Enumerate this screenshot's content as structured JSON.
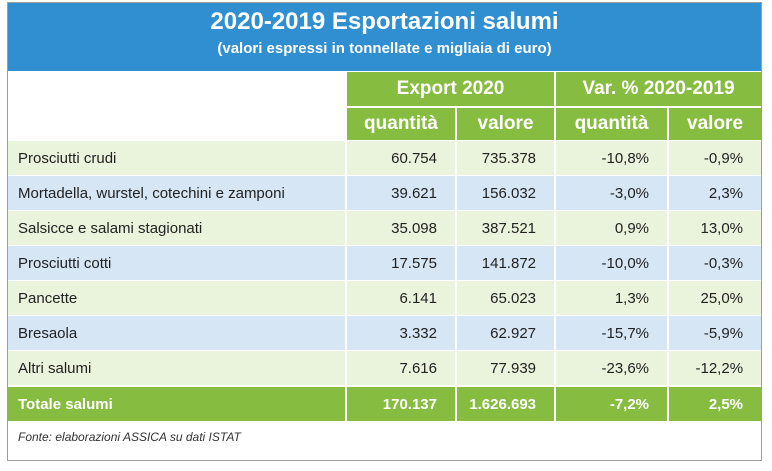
{
  "title": "2020-2019 Esportazioni salumi",
  "subtitle": "(valori espressi in tonnellate e migliaia di euro)",
  "group_headers": [
    "Export 2020",
    "Var. % 2020-2019"
  ],
  "sub_headers": [
    "quantità",
    "valore",
    "quantità",
    "valore"
  ],
  "rows": [
    {
      "label": "Prosciutti crudi",
      "q2020": "60.754",
      "v2020": "735.378",
      "qvar": "-10,8%",
      "vvar": "-0,9%"
    },
    {
      "label": "Mortadella, wurstel, cotechini e zamponi",
      "q2020": "39.621",
      "v2020": "156.032",
      "qvar": "-3,0%",
      "vvar": "2,3%"
    },
    {
      "label": "Salsicce e salami stagionati",
      "q2020": "35.098",
      "v2020": "387.521",
      "qvar": "0,9%",
      "vvar": "13,0%"
    },
    {
      "label": "Prosciutti cotti",
      "q2020": "17.575",
      "v2020": "141.872",
      "qvar": "-10,0%",
      "vvar": "-0,3%"
    },
    {
      "label": "Pancette",
      "q2020": "6.141",
      "v2020": "65.023",
      "qvar": "1,3%",
      "vvar": "25,0%"
    },
    {
      "label": "Bresaola",
      "q2020": "3.332",
      "v2020": "62.927",
      "qvar": "-15,7%",
      "vvar": "-5,9%"
    },
    {
      "label": "Altri salumi",
      "q2020": "7.616",
      "v2020": "77.939",
      "qvar": "-23,6%",
      "vvar": "-12,2%"
    }
  ],
  "total": {
    "label": "Totale salumi",
    "q2020": "170.137",
    "v2020": "1.626.693",
    "qvar": "-7,2%",
    "vvar": "2,5%"
  },
  "source": "Fonte: elaborazioni ASSICA su dati ISTAT",
  "colors": {
    "header_blue": "#2f8fd0",
    "header_green": "#86bc3f",
    "row_green": "#eaf3dc",
    "row_blue": "#d6e6f5"
  },
  "chart_data": {
    "type": "table",
    "title": "2020-2019 Esportazioni salumi",
    "subtitle": "(valori espressi in tonnellate e migliaia di euro)",
    "columns": [
      "",
      "Export 2020 quantità",
      "Export 2020 valore",
      "Var. % 2020-2019 quantità",
      "Var. % 2020-2019 valore"
    ],
    "rows": [
      [
        "Prosciutti crudi",
        60754,
        735378,
        -10.8,
        -0.9
      ],
      [
        "Mortadella, wurstel, cotechini e zamponi",
        39621,
        156032,
        -3.0,
        2.3
      ],
      [
        "Salsicce e salami stagionati",
        35098,
        387521,
        0.9,
        13.0
      ],
      [
        "Prosciutti cotti",
        17575,
        141872,
        -10.0,
        -0.3
      ],
      [
        "Pancette",
        6141,
        65023,
        1.3,
        25.0
      ],
      [
        "Bresaola",
        3332,
        62927,
        -15.7,
        -5.9
      ],
      [
        "Altri salumi",
        7616,
        77939,
        -23.6,
        -12.2
      ],
      [
        "Totale salumi",
        170137,
        1626693,
        -7.2,
        2.5
      ]
    ]
  }
}
